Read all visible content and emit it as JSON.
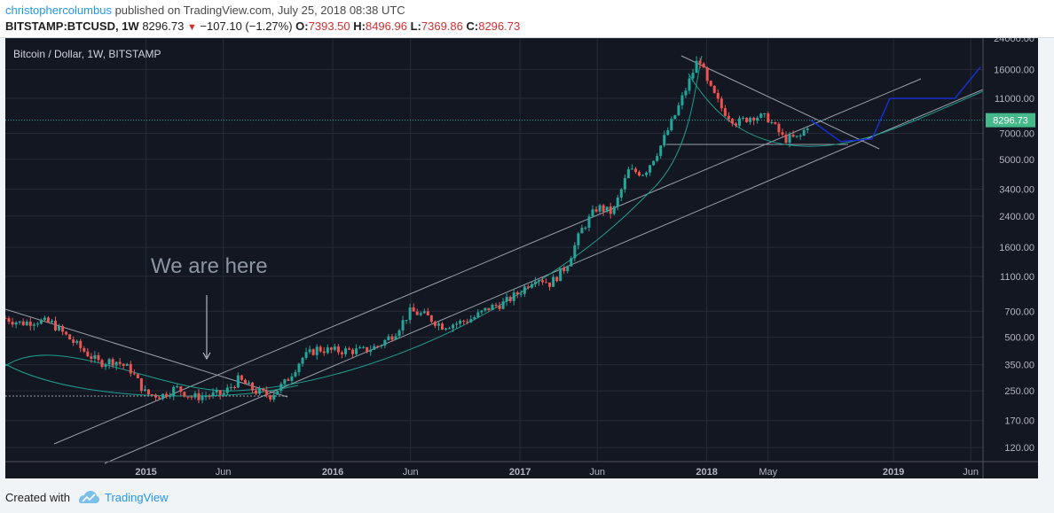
{
  "header": {
    "author": "christophercolumbus",
    "published_text": " published on TradingView.com, July 25, 2018 08:38 UTC",
    "symbol": "BITSTAMP:BTCUSD, 1W",
    "price": "8296.73",
    "change": "−107.10 (−1.27%)",
    "o_label": "O:",
    "o_value": "7393.50",
    "h_label": "H:",
    "h_value": "8496.96",
    "l_label": "L:",
    "l_value": "7369.86",
    "c_label": "C:",
    "c_value": "8296.73"
  },
  "footer": {
    "created_with": "Created with",
    "brand": "TradingView"
  },
  "colors": {
    "background": "#131722",
    "grid": "#262b38",
    "up": "#26a69a",
    "down": "#ef5350",
    "text": "#b2b5be",
    "curve": "#1e9e8e",
    "projection": "#1a2fd0",
    "price_label_bg": "#44b98a"
  },
  "chart_data": {
    "type": "candlestick",
    "title": "Bitcoin / Dollar, 1W, BITSTAMP",
    "annotation": "We are here",
    "scale": "log",
    "ylim": [
      100,
      24000
    ],
    "y_ticks": [
      24000,
      16000,
      11000,
      7000,
      5000,
      3400,
      2400,
      1600,
      1100,
      700,
      500,
      350,
      250,
      170,
      120
    ],
    "y_tick_labels": [
      "24000.00",
      "16000.00",
      "11000.00",
      "7000.00",
      "5000.00",
      "3400.00",
      "2400.00",
      "1600.00",
      "1100.00",
      "700.00",
      "500.00",
      "350.00",
      "250.00",
      "170.00",
      "120.00"
    ],
    "x_labels": [
      "2015",
      "Jun",
      "2016",
      "Jun",
      "2017",
      "Jun",
      "2018",
      "May",
      "2019",
      "Jun"
    ],
    "x_label_dates": [
      "2015-01-01",
      "2015-06-01",
      "2016-01-01",
      "2016-06-01",
      "2017-01-01",
      "2017-06-01",
      "2018-01-01",
      "2018-05-01",
      "2019-01-01",
      "2019-06-01"
    ],
    "x_range": [
      "2014-04-01",
      "2019-06-25"
    ],
    "last_price": 8296.73,
    "last_price_label": "8296.73",
    "price_path": [
      [
        "2014-04-01",
        640
      ],
      [
        "2014-05-01",
        600
      ],
      [
        "2014-06-01",
        620
      ],
      [
        "2014-07-01",
        600
      ],
      [
        "2014-08-01",
        500
      ],
      [
        "2014-09-01",
        420
      ],
      [
        "2014-10-01",
        360
      ],
      [
        "2014-11-01",
        370
      ],
      [
        "2014-12-01",
        330
      ],
      [
        "2015-01-01",
        240
      ],
      [
        "2015-02-01",
        235
      ],
      [
        "2015-03-01",
        260
      ],
      [
        "2015-04-01",
        230
      ],
      [
        "2015-05-01",
        235
      ],
      [
        "2015-06-01",
        240
      ],
      [
        "2015-07-01",
        290
      ],
      [
        "2015-08-01",
        250
      ],
      [
        "2015-09-01",
        235
      ],
      [
        "2015-10-01",
        280
      ],
      [
        "2015-11-01",
        380
      ],
      [
        "2015-12-01",
        430
      ],
      [
        "2016-01-01",
        420
      ],
      [
        "2016-02-01",
        420
      ],
      [
        "2016-03-01",
        420
      ],
      [
        "2016-04-01",
        450
      ],
      [
        "2016-05-01",
        530
      ],
      [
        "2016-06-01",
        700
      ],
      [
        "2016-07-01",
        660
      ],
      [
        "2016-08-01",
        580
      ],
      [
        "2016-09-01",
        600
      ],
      [
        "2016-10-01",
        640
      ],
      [
        "2016-11-01",
        730
      ],
      [
        "2016-12-01",
        780
      ],
      [
        "2017-01-01",
        900
      ],
      [
        "2017-02-01",
        1100
      ],
      [
        "2017-03-01",
        1000
      ],
      [
        "2017-04-01",
        1250
      ],
      [
        "2017-05-01",
        2000
      ],
      [
        "2017-06-01",
        2700
      ],
      [
        "2017-07-01",
        2500
      ],
      [
        "2017-08-01",
        4300
      ],
      [
        "2017-09-01",
        4200
      ],
      [
        "2017-10-01",
        5800
      ],
      [
        "2017-11-01",
        9000
      ],
      [
        "2017-12-01",
        14500
      ],
      [
        "2017-12-17",
        19000
      ],
      [
        "2018-01-01",
        13500
      ],
      [
        "2018-02-01",
        9500
      ],
      [
        "2018-03-01",
        8000
      ],
      [
        "2018-04-01",
        8800
      ],
      [
        "2018-05-01",
        8500
      ],
      [
        "2018-06-01",
        6500
      ],
      [
        "2018-07-01",
        6600
      ],
      [
        "2018-07-23",
        8296.73
      ]
    ],
    "projection": [
      [
        "2018-07-23",
        8296.73
      ],
      [
        "2018-09-20",
        6300
      ],
      [
        "2018-11-20",
        6500
      ],
      [
        "2018-12-25",
        11000
      ],
      [
        "2019-05-01",
        11000
      ],
      [
        "2019-06-20",
        16500
      ]
    ]
  }
}
